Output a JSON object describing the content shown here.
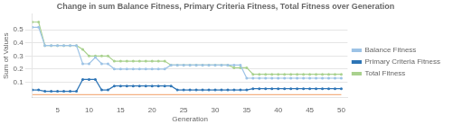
{
  "chart_data": {
    "type": "line",
    "title": "Change in sum Balance Fitness, Primary Criteria Fitness, Total Fitness over Generation",
    "x_label": "Generation",
    "y_label": "Sum of Values",
    "x": [
      1,
      2,
      3,
      4,
      5,
      6,
      7,
      8,
      9,
      10,
      11,
      12,
      13,
      14,
      15,
      16,
      17,
      18,
      19,
      20,
      21,
      22,
      23,
      24,
      25,
      26,
      27,
      28,
      29,
      30,
      31,
      32,
      33,
      34,
      35,
      36,
      37,
      38,
      39,
      40,
      41,
      42,
      43,
      44,
      45,
      46,
      47,
      48,
      49,
      50
    ],
    "xlim": [
      1,
      51
    ],
    "xticks": [
      5,
      10,
      15,
      20,
      25,
      30,
      35,
      40,
      45,
      50
    ],
    "ylim": [
      -0.02,
      0.62
    ],
    "yticks": [
      0.1,
      0.2,
      0.3,
      0.4,
      0.5
    ],
    "grid": "y",
    "legend": "right",
    "series": [
      {
        "name": "Balance Fitness",
        "color": "#9dc3e6",
        "marker": "o",
        "values": [
          0.52,
          0.52,
          0.38,
          0.38,
          0.38,
          0.38,
          0.38,
          0.38,
          0.24,
          0.24,
          0.29,
          0.24,
          0.24,
          0.2,
          0.2,
          0.2,
          0.2,
          0.2,
          0.2,
          0.2,
          0.2,
          0.2,
          0.23,
          0.23,
          0.23,
          0.23,
          0.23,
          0.23,
          0.23,
          0.23,
          0.23,
          0.23,
          0.23,
          0.23,
          0.13,
          0.13,
          0.13,
          0.13,
          0.13,
          0.13,
          0.13,
          0.13,
          0.13,
          0.13,
          0.13,
          0.13,
          0.13,
          0.13,
          0.13,
          0.13
        ]
      },
      {
        "name": "Primary Criteria Fitness",
        "color": "#2e75b6",
        "marker": "o",
        "values": [
          0.04,
          0.04,
          0.03,
          0.03,
          0.03,
          0.03,
          0.03,
          0.03,
          0.12,
          0.12,
          0.12,
          0.04,
          0.04,
          0.07,
          0.07,
          0.07,
          0.07,
          0.07,
          0.07,
          0.07,
          0.07,
          0.07,
          0.07,
          0.04,
          0.04,
          0.04,
          0.04,
          0.04,
          0.04,
          0.04,
          0.04,
          0.04,
          0.04,
          0.04,
          0.04,
          0.05,
          0.05,
          0.05,
          0.05,
          0.05,
          0.05,
          0.05,
          0.05,
          0.05,
          0.05,
          0.05,
          0.05,
          0.05,
          0.05,
          0.05
        ]
      },
      {
        "name": "Total Fitness",
        "color": "#a9d18e",
        "marker": "o",
        "values": [
          0.56,
          0.56,
          0.38,
          0.38,
          0.38,
          0.38,
          0.38,
          0.38,
          0.35,
          0.3,
          0.3,
          0.3,
          0.3,
          0.26,
          0.26,
          0.26,
          0.26,
          0.26,
          0.26,
          0.26,
          0.26,
          0.26,
          0.23,
          0.23,
          0.23,
          0.23,
          0.23,
          0.23,
          0.23,
          0.23,
          0.23,
          0.23,
          0.21,
          0.21,
          0.21,
          0.16,
          0.16,
          0.16,
          0.16,
          0.16,
          0.16,
          0.16,
          0.16,
          0.16,
          0.16,
          0.16,
          0.16,
          0.16,
          0.16,
          0.16
        ]
      },
      {
        "color": "#f4b183",
        "marker": "none",
        "x": [
          1,
          50
        ],
        "values": [
          0.003,
          0.003
        ]
      }
    ]
  }
}
